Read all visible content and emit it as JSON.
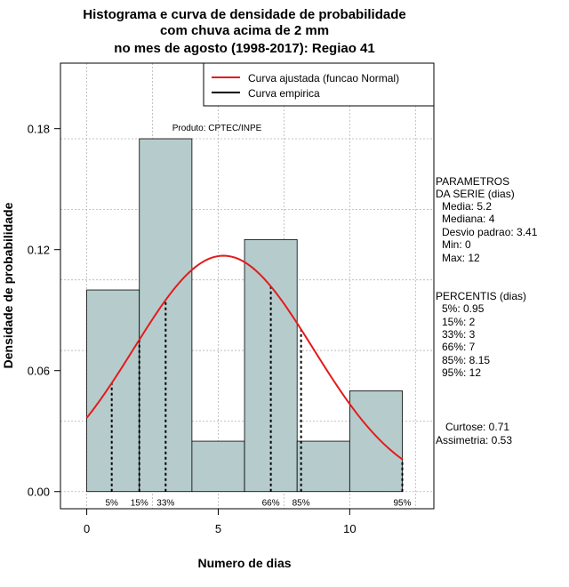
{
  "chart_data": {
    "type": "bar",
    "title": [
      "Histograma e curva de densidade de probabilidade",
      "com chuva acima de 2 mm",
      "no mes de agosto (1998-2017): Regiao 41"
    ],
    "xlabel": "Numero de dias",
    "ylabel": "Densidade de probabilidade",
    "xlim": [
      -1,
      13.2
    ],
    "ylim": [
      -0.0085,
      0.2125
    ],
    "x_ticks": [
      0,
      5,
      10
    ],
    "y_ticks": [
      0.0,
      0.06,
      0.12,
      0.18
    ],
    "y_tick_labels": [
      "0.00",
      "0.06",
      "0.12",
      "0.18"
    ],
    "bins": [
      {
        "start": 0,
        "end": 2,
        "density": 0.1
      },
      {
        "start": 2,
        "end": 4,
        "density": 0.175
      },
      {
        "start": 4,
        "end": 6,
        "density": 0.025
      },
      {
        "start": 6,
        "end": 8,
        "density": 0.125
      },
      {
        "start": 8,
        "end": 10,
        "density": 0.025
      },
      {
        "start": 10,
        "end": 12,
        "density": 0.05
      }
    ],
    "curve": {
      "name": "Curva ajustada (funcao Normal)",
      "color": "#e41a1c",
      "distribution": "normal",
      "mean": 5.2,
      "sd": 3.41,
      "x_range": [
        0,
        12
      ]
    },
    "empirical": {
      "name": "Curva empirica",
      "color": "#000000"
    },
    "legend_position": "top-right",
    "grid": true,
    "annotation": "Produto: CPTEC/INPE",
    "percentiles": [
      {
        "label": "5%",
        "value": 0.95
      },
      {
        "label": "15%",
        "value": 2
      },
      {
        "label": "33%",
        "value": 3
      },
      {
        "label": "66%",
        "value": 7
      },
      {
        "label": "85%",
        "value": 8.15
      },
      {
        "label": "95%",
        "value": 12
      }
    ]
  },
  "side_panel": {
    "params_title_1": "PARAMETROS",
    "params_title_2": "DA SERIE (dias)",
    "media": "Media: 5.2",
    "mediana": "Mediana: 4",
    "desvio": "Desvio padrao: 3.41",
    "min": "Min: 0",
    "max": "Max: 12",
    "percentis_title": "PERCENTIS (dias)",
    "p5": "5%: 0.95",
    "p15": "15%: 2",
    "p33": "33%: 3",
    "p66": "66%: 7",
    "p85": "85%: 8.15",
    "p95": "95%: 12",
    "curtose": "Curtose: 0.71",
    "assimetria": "Assimetria: 0.53"
  }
}
